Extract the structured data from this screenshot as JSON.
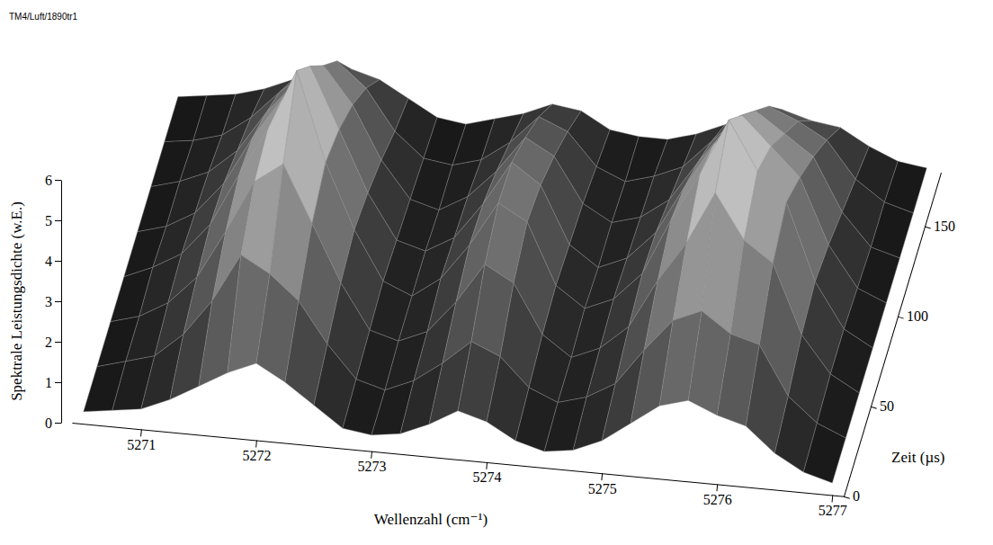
{
  "chart_data": {
    "type": "surface",
    "annotation": "TM4/Luft/1890tr1",
    "xlabel": "Wellenzahl (cm⁻¹)",
    "ylabel": "Zeit (µs)",
    "zlabel": "Spektrale Leistungsdichte (w.E.)",
    "xlim": [
      5270.4,
      5277.1
    ],
    "xticks": [
      5271,
      5272,
      5273,
      5274,
      5275,
      5276,
      5277
    ],
    "ylim": [
      0,
      180
    ],
    "yticks": [
      0,
      50,
      100,
      150
    ],
    "zlim": [
      0,
      6
    ],
    "zticks": [
      0,
      1,
      2,
      3,
      4,
      5,
      6
    ],
    "x": [
      5270.5,
      5270.75,
      5271,
      5271.25,
      5271.5,
      5271.75,
      5272,
      5272.25,
      5272.5,
      5272.75,
      5273,
      5273.25,
      5273.5,
      5273.75,
      5274,
      5274.25,
      5274.5,
      5274.75,
      5275,
      5275.25,
      5275.5,
      5275.75,
      5276,
      5276.25,
      5276.5,
      5276.75,
      5277
    ],
    "y": [
      0,
      25,
      50,
      75,
      100,
      125,
      150,
      175
    ],
    "z": [
      [
        0.3,
        0.4,
        0.5,
        0.8,
        1.2,
        1.6,
        1.9,
        1.5,
        1.0,
        0.5,
        0.4,
        0.5,
        0.8,
        1.2,
        1.0,
        0.6,
        0.4,
        0.5,
        0.8,
        1.3,
        1.8,
        2.0,
        1.7,
        1.5,
        0.9,
        0.5,
        0.3
      ],
      [
        0.3,
        0.5,
        0.7,
        1.3,
        2.2,
        3.4,
        3.0,
        2.4,
        1.4,
        0.6,
        0.4,
        0.7,
        1.2,
        1.8,
        1.5,
        0.8,
        0.5,
        0.7,
        1.1,
        2.0,
        2.8,
        3.1,
        2.6,
        2.4,
        1.2,
        0.6,
        0.3
      ],
      [
        0.3,
        0.5,
        0.9,
        1.6,
        2.8,
        4.1,
        4.6,
        3.2,
        1.8,
        0.7,
        0.5,
        0.8,
        1.6,
        2.6,
        2.2,
        1.0,
        0.5,
        0.8,
        1.4,
        2.6,
        3.6,
        4.9,
        3.8,
        3.3,
        1.6,
        0.7,
        0.3
      ],
      [
        0.3,
        0.6,
        1.0,
        1.8,
        3.1,
        4.3,
        5.8,
        3.6,
        2.0,
        0.8,
        0.5,
        1.0,
        1.9,
        3.0,
        2.6,
        1.1,
        0.6,
        0.9,
        1.6,
        3.0,
        4.2,
        5.6,
        4.4,
        3.7,
        1.8,
        0.7,
        0.3
      ],
      [
        0.3,
        0.5,
        0.9,
        1.7,
        2.9,
        3.9,
        4.8,
        3.3,
        1.8,
        0.7,
        0.5,
        0.9,
        1.8,
        2.9,
        2.4,
        1.0,
        0.5,
        0.8,
        1.5,
        2.7,
        3.8,
        4.6,
        3.9,
        3.2,
        1.6,
        0.6,
        0.3
      ],
      [
        0.3,
        0.5,
        0.8,
        1.4,
        2.4,
        3.2,
        3.7,
        2.8,
        1.5,
        0.6,
        0.4,
        0.8,
        1.5,
        2.4,
        2.0,
        0.9,
        0.5,
        0.7,
        1.2,
        2.2,
        3.1,
        3.6,
        3.1,
        2.6,
        1.3,
        0.5,
        0.3
      ],
      [
        0.3,
        0.4,
        0.6,
        1.1,
        1.8,
        2.4,
        2.7,
        2.1,
        1.1,
        0.5,
        0.4,
        0.6,
        1.1,
        1.8,
        1.5,
        0.7,
        0.4,
        0.6,
        0.9,
        1.6,
        2.3,
        2.6,
        2.3,
        1.9,
        1.0,
        0.5,
        0.3
      ],
      [
        0.3,
        0.4,
        0.5,
        0.7,
        1.0,
        1.3,
        1.4,
        1.2,
        0.8,
        0.4,
        0.3,
        0.5,
        0.7,
        1.0,
        0.9,
        0.5,
        0.4,
        0.4,
        0.6,
        0.9,
        1.2,
        1.4,
        1.2,
        1.1,
        0.7,
        0.4,
        0.3
      ]
    ]
  }
}
